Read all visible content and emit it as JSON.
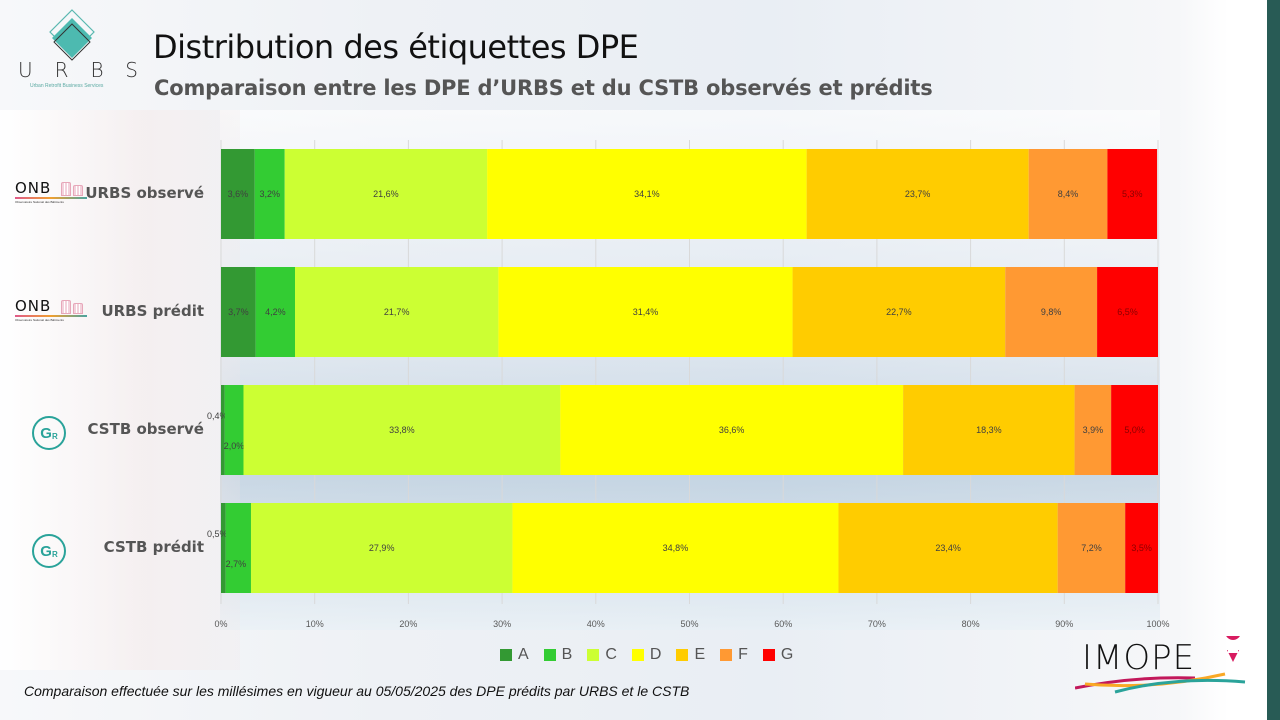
{
  "header": {
    "title": "Distribution des étiquettes DPE",
    "subtitle": "Comparaison entre les DPE d’URBS et du CSTB observés et prédits"
  },
  "logos": {
    "urbs_letters": "URBS",
    "urbs_tagline": "Urban Retrofit Business Services",
    "onb_text": "ONB",
    "onb_tagline": "Observatoire National des Bâtiments",
    "gr_text": "G",
    "gr_sub": "R",
    "imope_text": "IMOPE"
  },
  "footnote": "Comparaison effectuée sur les millésimes en vigueur au 05/05/2025 des DPE prédits par URBS et le CSTB",
  "colors": {
    "A": "#339933",
    "B": "#33cc33",
    "C": "#ccff33",
    "D": "#ffff00",
    "E": "#ffcc00",
    "F": "#ff9933",
    "G": "#ff0000",
    "panel": "#285b55"
  },
  "chart_data": {
    "type": "bar",
    "orientation": "horizontal",
    "stacked": "percent",
    "title": "Distribution des étiquettes DPE",
    "subtitle": "Comparaison entre les DPE d’URBS et du CSTB observés et prédits",
    "categories": [
      "URBS observé",
      "URBS prédit",
      "CSTB observé",
      "CSTB prédit"
    ],
    "category_logos": [
      "onb",
      "onb",
      "gr",
      "gr"
    ],
    "series": [
      {
        "name": "A",
        "values": [
          3.6,
          3.7,
          0.4,
          0.5
        ],
        "labels": [
          "3,6%",
          "3,7%",
          "0,4%",
          "0,5%"
        ]
      },
      {
        "name": "B",
        "values": [
          3.2,
          4.2,
          2.0,
          2.7
        ],
        "labels": [
          "3,2%",
          "4,2%",
          "2,0%",
          "2,7%"
        ]
      },
      {
        "name": "C",
        "values": [
          21.6,
          21.7,
          33.8,
          27.9
        ],
        "labels": [
          "21,6%",
          "21,7%",
          "33,8%",
          "27,9%"
        ]
      },
      {
        "name": "D",
        "values": [
          34.1,
          31.4,
          36.6,
          34.8
        ],
        "labels": [
          "34,1%",
          "31,4%",
          "36,6%",
          "34,8%"
        ]
      },
      {
        "name": "E",
        "values": [
          23.7,
          22.7,
          18.3,
          23.4
        ],
        "labels": [
          "23,7%",
          "22,7%",
          "18,3%",
          "23,4%"
        ]
      },
      {
        "name": "F",
        "values": [
          8.4,
          9.8,
          3.9,
          7.2
        ],
        "labels": [
          "8,4%",
          "9,8%",
          "3,9%",
          "7,2%"
        ]
      },
      {
        "name": "G",
        "values": [
          5.3,
          6.5,
          5.0,
          3.5
        ],
        "labels": [
          "5,3%",
          "6,5%",
          "5,0%",
          "3,5%"
        ]
      }
    ],
    "xlabel": "",
    "ylabel": "",
    "xlim": [
      0,
      100
    ],
    "xticks": [
      "0%",
      "10%",
      "20%",
      "30%",
      "40%",
      "50%",
      "60%",
      "70%",
      "80%",
      "90%",
      "100%"
    ],
    "grid": true,
    "legend": {
      "position": "bottom",
      "entries": [
        "A",
        "B",
        "C",
        "D",
        "E",
        "F",
        "G"
      ]
    }
  }
}
